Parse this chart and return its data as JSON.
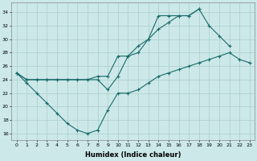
{
  "xlabel": "Humidex (Indice chaleur)",
  "xlim": [
    -0.5,
    23.5
  ],
  "ylim": [
    15,
    35.5
  ],
  "yticks": [
    16,
    18,
    20,
    22,
    24,
    26,
    28,
    30,
    32,
    34
  ],
  "xticks": [
    0,
    1,
    2,
    3,
    4,
    5,
    6,
    7,
    8,
    9,
    10,
    11,
    12,
    13,
    14,
    15,
    16,
    17,
    18,
    19,
    20,
    21,
    22,
    23
  ],
  "bg_color": "#cce8e8",
  "grid_color": "#aacece",
  "line_color": "#1a6b6b",
  "line1_x": [
    0,
    1,
    2,
    3,
    4,
    5,
    6,
    7,
    8,
    9,
    10,
    11,
    12,
    13,
    14,
    15,
    16,
    17,
    18,
    19,
    20,
    21
  ],
  "line1_y": [
    25.0,
    24.0,
    24.0,
    24.0,
    24.0,
    24.0,
    24.0,
    24.0,
    24.5,
    24.5,
    27.5,
    27.5,
    29.0,
    30.0,
    33.5,
    33.5,
    33.5,
    33.5,
    34.5,
    32.0,
    30.5,
    29.0
  ],
  "line2_x": [
    0,
    1,
    2,
    3,
    4,
    5,
    6,
    7,
    8,
    9,
    10,
    11,
    12,
    13,
    14,
    15,
    16,
    17,
    18
  ],
  "line2_y": [
    25.0,
    24.0,
    24.0,
    24.0,
    24.0,
    24.0,
    24.0,
    24.0,
    24.0,
    22.5,
    24.5,
    27.5,
    28.0,
    30.0,
    31.5,
    32.5,
    33.5,
    33.5,
    34.5
  ],
  "line3_x": [
    0,
    1,
    2,
    3,
    4,
    5,
    6,
    7,
    8,
    9,
    10,
    11,
    12,
    13,
    14,
    15,
    16,
    17,
    18,
    19,
    20,
    21,
    22,
    23
  ],
  "line3_y": [
    25.0,
    23.5,
    22.0,
    20.5,
    19.0,
    17.5,
    16.5,
    16.0,
    16.5,
    19.5,
    22.0,
    22.0,
    22.5,
    23.5,
    24.5,
    25.0,
    25.5,
    26.0,
    26.5,
    27.0,
    27.5,
    28.0,
    27.0,
    26.5
  ]
}
